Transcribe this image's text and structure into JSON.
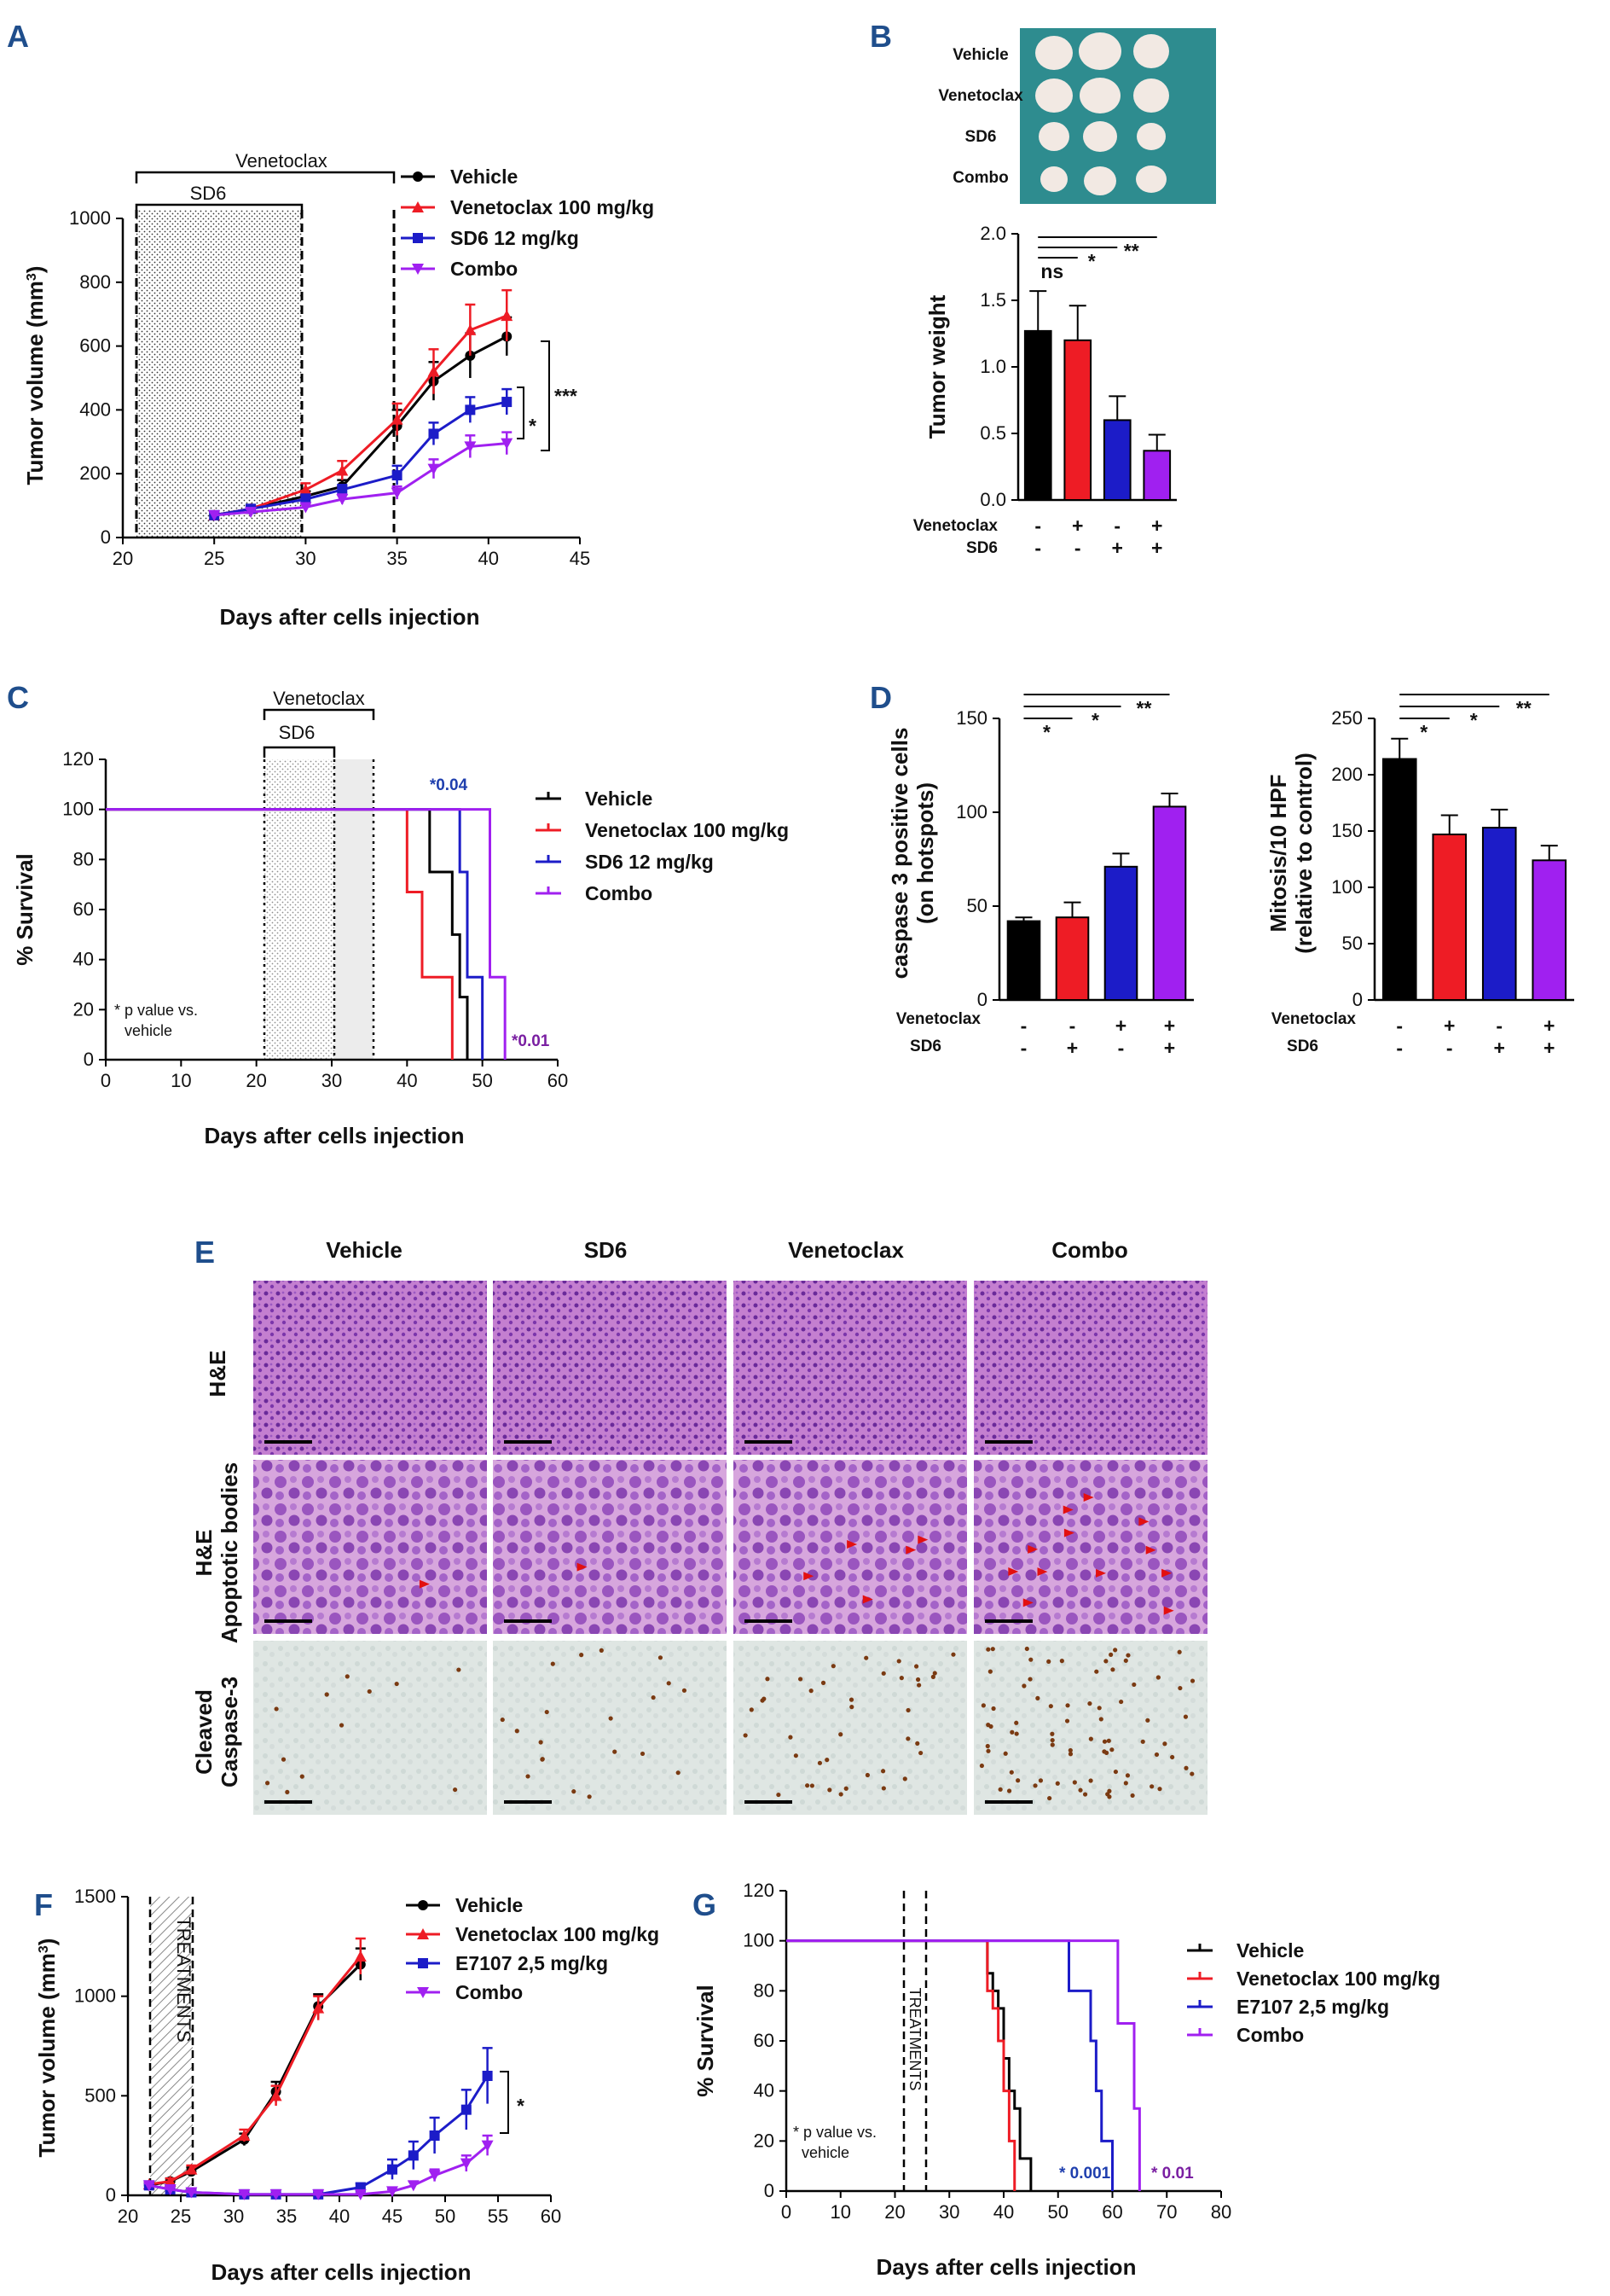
{
  "panels": {
    "A": "A",
    "B": "B",
    "C": "C",
    "D": "D",
    "E": "E",
    "F": "F",
    "G": "G"
  },
  "colors": {
    "vehicle": "#000000",
    "venetoclax": "#ee1c25",
    "sd6": "#1c1cc8",
    "combo": "#a020f0",
    "combo_dark": "#7a1fa2",
    "blue_text": "#1f3fae",
    "purple_text": "#7a1fa2"
  },
  "chart_data": [
    {
      "id": "A",
      "type": "line",
      "title": "",
      "xlabel": "Days after cells injection",
      "ylabel": "Tumor volume (mm3)",
      "xlim": [
        20,
        45
      ],
      "ylim": [
        0,
        1000
      ],
      "xticks": [
        "20",
        "25",
        "30",
        "35",
        "40",
        "45"
      ],
      "yticks": [
        "0",
        "200",
        "400",
        "600",
        "800",
        "1000"
      ],
      "x": [
        25,
        27,
        30,
        32,
        35,
        37,
        39,
        41
      ],
      "series": [
        {
          "name": "Vehicle",
          "values": [
            70,
            90,
            130,
            160,
            350,
            490,
            570,
            630
          ],
          "err": [
            10,
            10,
            15,
            20,
            50,
            60,
            70,
            60
          ]
        },
        {
          "name": "Venetoclax 100 mg/kg",
          "values": [
            70,
            90,
            150,
            210,
            370,
            520,
            650,
            695
          ],
          "err": [
            10,
            10,
            20,
            30,
            50,
            70,
            80,
            80
          ]
        },
        {
          "name": "SD6 12 mg/kg",
          "values": [
            70,
            90,
            120,
            150,
            195,
            325,
            400,
            425
          ],
          "err": [
            10,
            10,
            15,
            15,
            30,
            35,
            40,
            40
          ]
        },
        {
          "name": "Combo",
          "values": [
            70,
            80,
            95,
            120,
            140,
            215,
            285,
            295
          ],
          "err": [
            10,
            10,
            10,
            15,
            20,
            30,
            35,
            35
          ]
        }
      ],
      "treatment_labels": [
        "Venetoclax",
        "SD6"
      ],
      "significance": [
        "*",
        "***"
      ]
    },
    {
      "id": "B",
      "type": "bar",
      "ylabel": "Tumor weight",
      "ylim": [
        0,
        2
      ],
      "yticks": [
        "0.0",
        "0.5",
        "1.0",
        "1.5",
        "2.0"
      ],
      "values": [
        1.27,
        1.2,
        0.6,
        0.37
      ],
      "err": [
        0.3,
        0.26,
        0.18,
        0.12
      ],
      "row_labels": [
        "Venetoclax",
        "SD6"
      ],
      "venetoclax": [
        "-",
        "+",
        "-",
        "+"
      ],
      "sd6": [
        "-",
        "-",
        "+",
        "+"
      ],
      "significance": [
        "ns",
        "*",
        "**"
      ],
      "photo_labels": [
        "Vehicle",
        "Venetoclax",
        "SD6",
        "Combo"
      ]
    },
    {
      "id": "C",
      "type": "line",
      "xlabel": "Days after cells injection",
      "ylabel": "% Survival",
      "xlim": [
        0,
        60
      ],
      "ylim": [
        0,
        120
      ],
      "xticks": [
        "0",
        "10",
        "20",
        "30",
        "40",
        "50",
        "60"
      ],
      "yticks": [
        "0",
        "20",
        "40",
        "60",
        "80",
        "100",
        "120"
      ],
      "series": [
        {
          "name": "Vehicle",
          "steps": [
            [
              0,
              100
            ],
            [
              43,
              100
            ],
            [
              43,
              75
            ],
            [
              46,
              75
            ],
            [
              46,
              50
            ],
            [
              47,
              50
            ],
            [
              47,
              25
            ],
            [
              48,
              25
            ],
            [
              48,
              0
            ]
          ]
        },
        {
          "name": "Venetoclax 100 mg/kg",
          "steps": [
            [
              0,
              100
            ],
            [
              40,
              100
            ],
            [
              40,
              67
            ],
            [
              42,
              67
            ],
            [
              42,
              33
            ],
            [
              46,
              33
            ],
            [
              46,
              0
            ]
          ]
        },
        {
          "name": "SD6 12 mg/kg",
          "steps": [
            [
              0,
              100
            ],
            [
              47,
              100
            ],
            [
              47,
              75
            ],
            [
              48,
              75
            ],
            [
              48,
              33
            ],
            [
              50,
              33
            ],
            [
              50,
              0
            ]
          ]
        },
        {
          "name": "Combo",
          "steps": [
            [
              0,
              100
            ],
            [
              51,
              100
            ],
            [
              51,
              33
            ],
            [
              53,
              33
            ],
            [
              53,
              0
            ]
          ]
        }
      ],
      "treatment_labels": [
        "Venetoclax",
        "SD6"
      ],
      "annotations": [
        "*0.04",
        "*0.01"
      ],
      "note": [
        "* p value vs.",
        "vehicle"
      ]
    },
    {
      "id": "D1",
      "type": "bar",
      "ylabel": [
        "caspase 3 positive cells",
        "(on hotspots)"
      ],
      "ylim": [
        0,
        150
      ],
      "yticks": [
        "0",
        "50",
        "100",
        "150"
      ],
      "values": [
        42,
        44,
        71,
        103
      ],
      "err": [
        2,
        8,
        7,
        7
      ],
      "row_labels": [
        "Venetoclax",
        "SD6"
      ],
      "venetoclax": [
        "-",
        "-",
        "+",
        "+"
      ],
      "sd6": [
        "-",
        "+",
        "-",
        "+"
      ],
      "significance": [
        "*",
        "*",
        "**"
      ]
    },
    {
      "id": "D2",
      "type": "bar",
      "ylabel": [
        "Mitosis/10 HPF",
        "(relative to control)"
      ],
      "ylim": [
        0,
        250
      ],
      "yticks": [
        "0",
        "50",
        "100",
        "150",
        "200",
        "250"
      ],
      "values": [
        214,
        147,
        153,
        124
      ],
      "err": [
        18,
        17,
        16,
        13
      ],
      "row_labels": [
        "Venetoclax",
        "SD6"
      ],
      "venetoclax": [
        "-",
        "+",
        "-",
        "+"
      ],
      "sd6": [
        "-",
        "-",
        "+",
        "+"
      ],
      "significance": [
        "*",
        "*",
        "**"
      ]
    },
    {
      "id": "F",
      "type": "line",
      "xlabel": "Days after cells injection",
      "ylabel": "Tumor volume (mm3)",
      "xlim": [
        20,
        60
      ],
      "ylim": [
        0,
        1500
      ],
      "xticks": [
        "20",
        "25",
        "30",
        "35",
        "40",
        "45",
        "50",
        "55",
        "60"
      ],
      "yticks": [
        "0",
        "500",
        "1000",
        "1500"
      ],
      "series": [
        {
          "name": "Vehicle",
          "x": [
            22,
            24,
            26,
            31,
            34,
            38,
            42
          ],
          "values": [
            50,
            70,
            120,
            280,
            520,
            950,
            1160
          ],
          "err": [
            10,
            15,
            20,
            30,
            50,
            60,
            80
          ]
        },
        {
          "name": "Venetoclax 100 mg/kg",
          "x": [
            22,
            24,
            26,
            31,
            34,
            38,
            42
          ],
          "values": [
            55,
            70,
            130,
            300,
            500,
            940,
            1200
          ],
          "err": [
            10,
            15,
            20,
            30,
            50,
            60,
            90
          ]
        },
        {
          "name": "E7107 2,5 mg/kg",
          "x": [
            22,
            24,
            26,
            31,
            34,
            38,
            42,
            45,
            47,
            49,
            52,
            54
          ],
          "values": [
            50,
            30,
            15,
            5,
            5,
            5,
            40,
            130,
            200,
            300,
            430,
            600
          ],
          "err": [
            10,
            10,
            5,
            3,
            3,
            3,
            20,
            50,
            70,
            90,
            100,
            140
          ]
        },
        {
          "name": "Combo",
          "x": [
            22,
            24,
            26,
            31,
            34,
            38,
            42,
            45,
            47,
            49,
            52,
            54
          ],
          "values": [
            50,
            30,
            15,
            5,
            5,
            5,
            5,
            20,
            50,
            100,
            160,
            250
          ],
          "err": [
            10,
            10,
            5,
            3,
            3,
            3,
            3,
            10,
            20,
            30,
            40,
            50
          ]
        }
      ],
      "treatment_label": "TREATMENTS",
      "significance": [
        "*"
      ]
    },
    {
      "id": "G",
      "type": "line",
      "xlabel": "Days after cells injection",
      "ylabel": "% Survival",
      "xlim": [
        0,
        80
      ],
      "ylim": [
        0,
        120
      ],
      "xticks": [
        "0",
        "10",
        "20",
        "30",
        "40",
        "50",
        "60",
        "70",
        "80"
      ],
      "yticks": [
        "0",
        "20",
        "40",
        "60",
        "80",
        "100",
        "120"
      ],
      "series": [
        {
          "name": "Vehicle",
          "steps": [
            [
              0,
              100
            ],
            [
              37,
              100
            ],
            [
              37,
              87
            ],
            [
              38,
              87
            ],
            [
              38,
              80
            ],
            [
              39,
              80
            ],
            [
              39,
              73
            ],
            [
              40,
              73
            ],
            [
              40,
              53
            ],
            [
              41,
              53
            ],
            [
              41,
              40
            ],
            [
              42,
              40
            ],
            [
              42,
              33
            ],
            [
              43,
              33
            ],
            [
              43,
              13
            ],
            [
              45,
              13
            ],
            [
              45,
              0
            ]
          ]
        },
        {
          "name": "Venetoclax 100 mg/kg",
          "steps": [
            [
              0,
              100
            ],
            [
              37,
              100
            ],
            [
              37,
              80
            ],
            [
              38,
              80
            ],
            [
              38,
              73
            ],
            [
              39,
              73
            ],
            [
              39,
              60
            ],
            [
              40,
              60
            ],
            [
              40,
              40
            ],
            [
              41,
              40
            ],
            [
              41,
              20
            ],
            [
              42,
              20
            ],
            [
              42,
              0
            ]
          ]
        },
        {
          "name": "E7107 2,5 mg/kg",
          "steps": [
            [
              0,
              100
            ],
            [
              52,
              100
            ],
            [
              52,
              80
            ],
            [
              56,
              80
            ],
            [
              56,
              60
            ],
            [
              57,
              60
            ],
            [
              57,
              40
            ],
            [
              58,
              40
            ],
            [
              58,
              20
            ],
            [
              60,
              20
            ],
            [
              60,
              0
            ]
          ]
        },
        {
          "name": "Combo",
          "steps": [
            [
              0,
              100
            ],
            [
              61,
              100
            ],
            [
              61,
              67
            ],
            [
              64,
              67
            ],
            [
              64,
              33
            ],
            [
              65,
              33
            ],
            [
              65,
              0
            ]
          ]
        }
      ],
      "treatment_label": "TREATMENTS",
      "annotations": [
        "* 0.001",
        "* 0.01"
      ],
      "note": [
        "* p value vs.",
        "vehicle"
      ]
    }
  ],
  "panelE": {
    "columns": [
      "Vehicle",
      "SD6",
      "Venetoclax",
      "Combo"
    ],
    "rows": [
      [
        "H&E"
      ],
      [
        "H&E",
        "Apoptotic bodies"
      ],
      [
        "Cleaved",
        "Caspase-3"
      ]
    ]
  }
}
